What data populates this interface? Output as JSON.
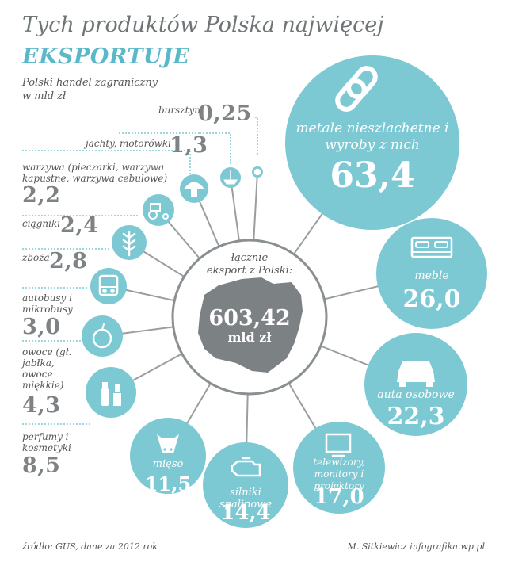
{
  "header": {
    "title_line1": "Tych produktów Polska najwięcej",
    "title_line2": "EKSPORTUJE",
    "subtitle_line1": "Polski handel zagraniczny",
    "subtitle_line2": "w mld zł"
  },
  "center": {
    "label_line1": "łącznie",
    "label_line2": "eksport z Polski:",
    "value": "603,42",
    "unit": "mld zł"
  },
  "left_items": [
    {
      "label": "bursztyn",
      "value": "0,25",
      "icon": "amber-icon"
    },
    {
      "label": "jachty, motorówki",
      "value": "1,3",
      "icon": "boat-icon"
    },
    {
      "label": "warzywa (pieczarki, warzywa kapustne, warzywa cebulowe)",
      "value": "2,2",
      "icon": "mushroom-icon"
    },
    {
      "label": "ciągniki",
      "value": "2,4",
      "icon": "tractor-icon"
    },
    {
      "label": "zboża",
      "value": "2,8",
      "icon": "wheat-icon"
    },
    {
      "label": "autobusy i mikrobusy",
      "value": "3,0",
      "icon": "bus-icon"
    },
    {
      "label": "owoce (gł. jabłka, owoce miękkie)",
      "value": "4,3",
      "icon": "apple-icon"
    },
    {
      "label": "perfumy i kosmetyki",
      "value": "8,5",
      "icon": "cosmetics-icon"
    }
  ],
  "big_items": [
    {
      "label": "metale nieszlachetne i wyroby z nich",
      "value": "63,4",
      "icon": "chain-link-icon"
    },
    {
      "label": "meble",
      "value": "26,0",
      "icon": "bed-icon"
    },
    {
      "label": "auta osobowe",
      "value": "22,3",
      "icon": "car-icon"
    },
    {
      "label": "telewizory, monitory i projektory",
      "value": "17,0",
      "icon": "tv-icon"
    },
    {
      "label": "silniki spalinowe",
      "value": "14,4",
      "icon": "engine-icon"
    },
    {
      "label": "mięso",
      "value": "11,5",
      "icon": "cow-icon"
    }
  ],
  "footer": {
    "source": "źródło: GUS, dane za 2012 rok",
    "author": "M. Sitkiewicz infografika.wp.pl"
  },
  "colors": {
    "accent": "#7cc9d4",
    "center": "#858a8d",
    "text": "#555555",
    "value": "#7d8285"
  }
}
